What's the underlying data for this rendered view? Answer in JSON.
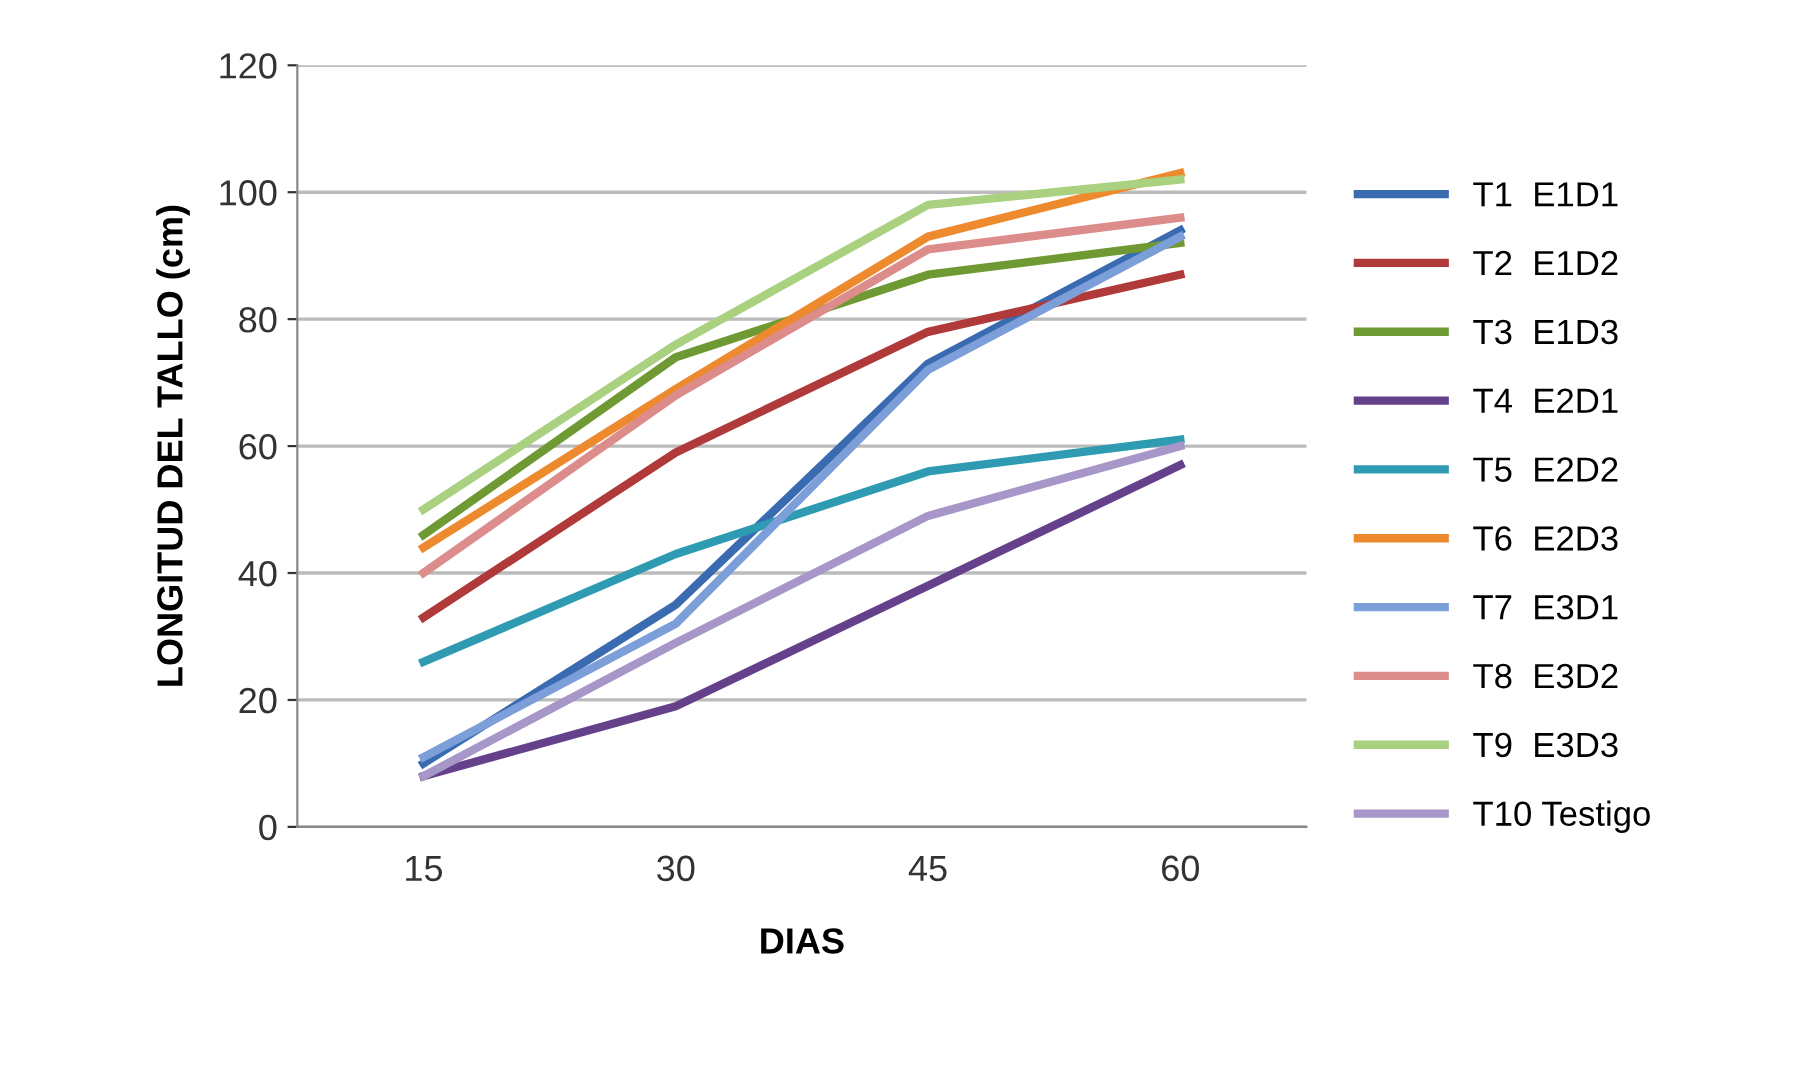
{
  "chart_data": {
    "type": "line",
    "xlabel": "DIAS",
    "ylabel": "LONGITUD DEL TALLO (cm)",
    "categories": [
      "15",
      "30",
      "45",
      "60"
    ],
    "ylim": [
      0,
      120
    ],
    "yticks": [
      0,
      20,
      40,
      60,
      80,
      100,
      120
    ],
    "grid": "y",
    "legend": "right",
    "marker": "none",
    "line_style": "solid",
    "series": [
      {
        "name": "T1  E1D1",
        "color": "#3a6ab0",
        "values": [
          10,
          35,
          73,
          94
        ]
      },
      {
        "name": "T2  E1D2",
        "color": "#b0393a",
        "values": [
          33,
          59,
          78,
          87
        ]
      },
      {
        "name": "T3  E1D3",
        "color": "#6f9a33",
        "values": [
          46,
          74,
          87,
          92
        ]
      },
      {
        "name": "T4  E2D1",
        "color": "#65418c",
        "values": [
          8,
          19,
          38,
          57
        ]
      },
      {
        "name": "T5  E2D2",
        "color": "#2f9bb2",
        "values": [
          26,
          43,
          56,
          61
        ]
      },
      {
        "name": "T6  E2D3",
        "color": "#ee8a2e",
        "values": [
          44,
          69,
          93,
          103
        ]
      },
      {
        "name": "T7  E3D1",
        "color": "#7d9fd9",
        "values": [
          11,
          32,
          72,
          93
        ]
      },
      {
        "name": "T8  E3D2",
        "color": "#dc8c8a",
        "values": [
          40,
          68,
          91,
          96
        ]
      },
      {
        "name": "T9  E3D3",
        "color": "#a9d180",
        "values": [
          50,
          76,
          98,
          102
        ]
      },
      {
        "name": "T10 Testigo",
        "color": "#a697c8",
        "values": [
          8,
          29,
          49,
          60
        ]
      }
    ]
  }
}
